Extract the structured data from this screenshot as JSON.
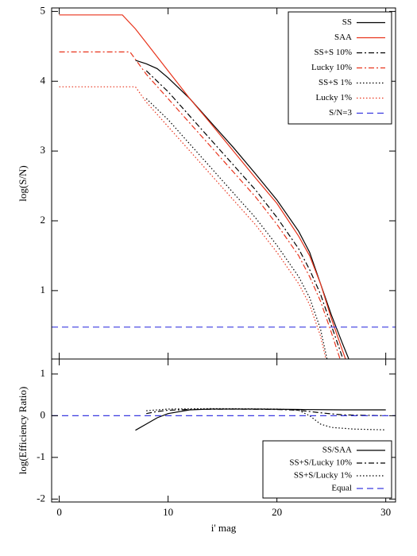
{
  "chart_data": [
    {
      "type": "line",
      "ylabel": "log(S/N)",
      "xlim": [
        -0.7,
        30.9
      ],
      "xticks": [
        0,
        10,
        20,
        30
      ],
      "ylim": [
        0.02,
        5.05
      ],
      "yticks": [
        1,
        2,
        3,
        4,
        5
      ],
      "legend": "upper right",
      "series": [
        {
          "name": "SS",
          "color": "#000000",
          "style": "solid",
          "x": [
            7,
            8,
            9,
            10,
            12,
            14,
            16,
            18,
            20,
            22,
            23,
            24,
            25,
            26,
            26.6
          ],
          "values": [
            4.3,
            4.25,
            4.18,
            4.05,
            3.75,
            3.4,
            3.05,
            2.68,
            2.3,
            1.85,
            1.55,
            1.1,
            0.65,
            0.25,
            0.02
          ]
        },
        {
          "name": "SAA",
          "color": "#e8341c",
          "style": "solid",
          "x": [
            0,
            5.8,
            7,
            8,
            10,
            12,
            14,
            16,
            18,
            20,
            22,
            23,
            24,
            25,
            26,
            26.3
          ],
          "values": [
            4.95,
            4.95,
            4.75,
            4.55,
            4.15,
            3.75,
            3.38,
            3.0,
            2.62,
            2.25,
            1.78,
            1.5,
            1.1,
            0.6,
            0.15,
            0.02
          ]
        },
        {
          "name": "SS+S 10%",
          "color": "#000000",
          "style": "dashdot",
          "x": [
            8,
            10,
            12,
            14,
            16,
            18,
            20,
            22,
            23,
            24,
            25,
            26
          ],
          "values": [
            4.15,
            3.85,
            3.5,
            3.15,
            2.8,
            2.45,
            2.05,
            1.6,
            1.3,
            0.95,
            0.5,
            0.05
          ]
        },
        {
          "name": "Lucky 10%",
          "color": "#e8341c",
          "style": "dashdot",
          "x": [
            0,
            6.5,
            8,
            10,
            12,
            14,
            16,
            18,
            20,
            22,
            23,
            24,
            25,
            25.8
          ],
          "values": [
            4.42,
            4.42,
            4.1,
            3.75,
            3.4,
            3.05,
            2.7,
            2.35,
            1.95,
            1.5,
            1.2,
            0.85,
            0.4,
            0.02
          ]
        },
        {
          "name": "SS+S 1%",
          "color": "#000000",
          "style": "dotted",
          "x": [
            8,
            10,
            12,
            14,
            16,
            18,
            20,
            22,
            23,
            24,
            24.6
          ],
          "values": [
            3.75,
            3.45,
            3.1,
            2.75,
            2.4,
            2.05,
            1.65,
            1.2,
            0.9,
            0.45,
            0.02
          ]
        },
        {
          "name": "Lucky 1%",
          "color": "#e8341c",
          "style": "dotted",
          "x": [
            0,
            7,
            8,
            10,
            12,
            14,
            16,
            18,
            20,
            22,
            23,
            24,
            24.5
          ],
          "values": [
            3.92,
            3.92,
            3.7,
            3.35,
            3.0,
            2.65,
            2.3,
            1.95,
            1.55,
            1.1,
            0.8,
            0.35,
            0.02
          ]
        },
        {
          "name": "S/N=3",
          "color": "#3a3ae0",
          "style": "dashed",
          "x": [
            -0.7,
            30.9
          ],
          "values": [
            0.477,
            0.477
          ]
        }
      ]
    },
    {
      "type": "line",
      "xlabel": "i' mag",
      "ylabel": "log(Efficiency Ratio)",
      "xlim": [
        -0.7,
        30.9
      ],
      "xticks": [
        0,
        10,
        20,
        30
      ],
      "ylim": [
        -2.07,
        1.36
      ],
      "yticks": [
        -2,
        -1,
        0,
        1
      ],
      "legend": "lower right",
      "series": [
        {
          "name": "SS/SAA",
          "color": "#000000",
          "style": "solid",
          "x": [
            7,
            8,
            9,
            10,
            12,
            14,
            18,
            22,
            26,
            30
          ],
          "values": [
            -0.35,
            -0.2,
            -0.05,
            0.05,
            0.14,
            0.16,
            0.16,
            0.15,
            0.14,
            0.14
          ]
        },
        {
          "name": "SS+S/Lucky 10%",
          "color": "#000000",
          "style": "dashdot",
          "x": [
            8,
            9,
            10,
            12,
            16,
            20,
            22,
            24,
            26,
            28,
            30
          ],
          "values": [
            0.05,
            0.1,
            0.13,
            0.15,
            0.16,
            0.15,
            0.13,
            0.07,
            0.02,
            0.01,
            0.0
          ]
        },
        {
          "name": "SS+S/Lucky 1%",
          "color": "#000000",
          "style": "dotted",
          "x": [
            8,
            10,
            14,
            20,
            22,
            23,
            24,
            25,
            27,
            30
          ],
          "values": [
            0.12,
            0.16,
            0.17,
            0.16,
            0.13,
            0.0,
            -0.2,
            -0.28,
            -0.32,
            -0.34
          ]
        },
        {
          "name": "Equal",
          "color": "#3a3ae0",
          "style": "dashed",
          "x": [
            -0.7,
            30.9
          ],
          "values": [
            0,
            0
          ]
        }
      ]
    }
  ]
}
